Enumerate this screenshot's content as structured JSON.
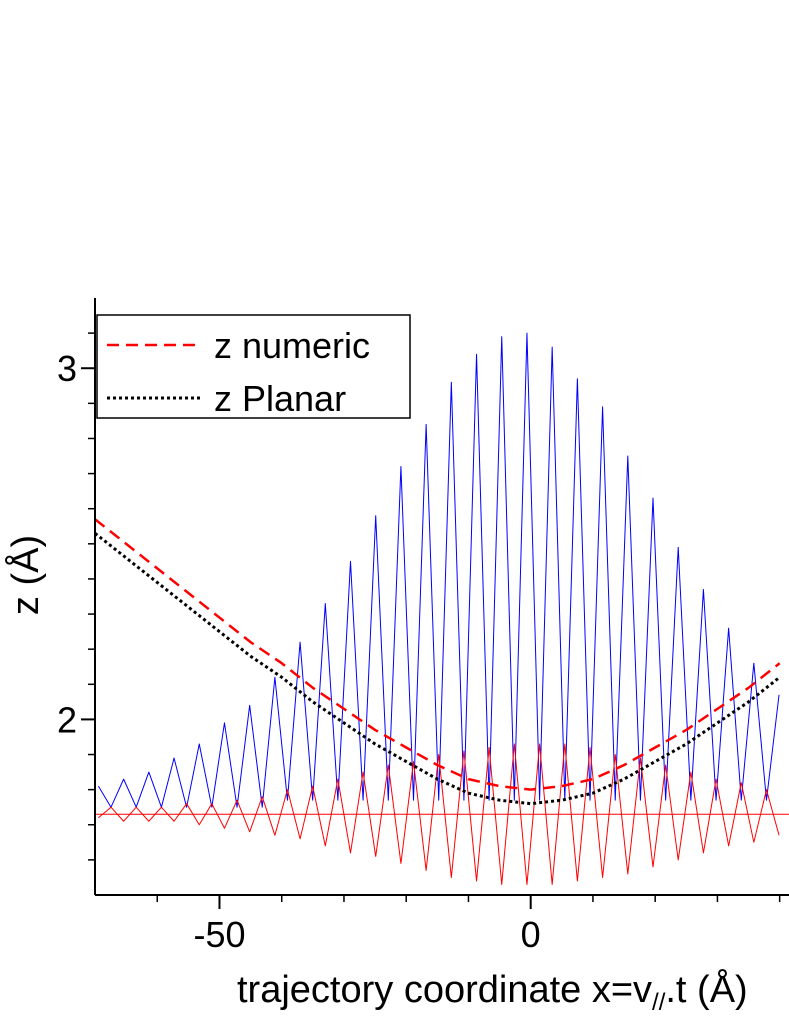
{
  "chart_data": {
    "type": "line",
    "x_label": "trajectory coordinate x=v",
    "x_label_sub": "//",
    "x_label_end": ".t (Å)",
    "y_label": "z (Å)",
    "xlim": [
      -70,
      41.5
    ],
    "ylim": [
      1.5,
      3.2
    ],
    "xticks": [
      -50,
      0
    ],
    "xminorticks": [
      -60,
      -40,
      -30,
      -20,
      -10,
      10,
      20,
      30,
      40
    ],
    "yticks": [
      2,
      3
    ],
    "yminorticks": [
      1.6,
      1.7,
      1.8,
      1.9,
      2.1,
      2.2,
      2.3,
      2.4,
      2.5,
      2.6,
      2.7,
      2.8,
      2.9,
      3.1
    ],
    "legend": "top-left",
    "hlines": [
      {
        "value": 1.73,
        "color": "#ff0000"
      }
    ],
    "series": [
      {
        "color": "#0000ff",
        "style": "solid",
        "width": 1,
        "x": [
          -69.45,
          -67.43,
          -65.4,
          -63.38,
          -61.35,
          -59.33,
          -57.3,
          -55.28,
          -53.25,
          -51.23,
          -49.2,
          -47.18,
          -45.15,
          -43.13,
          -41.1,
          -39.08,
          -37.05,
          -35.03,
          -33,
          -30.98,
          -28.95,
          -26.93,
          -24.9,
          -22.88,
          -20.85,
          -18.83,
          -16.8,
          -14.78,
          -12.75,
          -10.73,
          -8.7,
          -6.68,
          -4.65,
          -2.63,
          -0.6,
          1.43,
          3.45,
          5.48,
          7.5,
          9.53,
          11.55,
          13.58,
          15.6,
          17.63,
          19.65,
          21.68,
          23.7,
          25.73,
          27.75,
          29.78,
          31.8,
          33.83,
          35.85,
          37.88,
          39.9
        ],
        "values": [
          1.81,
          1.75,
          1.83,
          1.75,
          1.85,
          1.75,
          1.89,
          1.75,
          1.93,
          1.75,
          1.99,
          1.75,
          2.04,
          1.75,
          2.12,
          1.77,
          2.22,
          1.77,
          2.33,
          1.77,
          2.45,
          1.77,
          2.58,
          1.77,
          2.72,
          1.77,
          2.84,
          1.77,
          2.96,
          1.77,
          3.04,
          1.77,
          3.09,
          1.77,
          3.1,
          1.77,
          3.06,
          1.77,
          2.97,
          1.77,
          2.89,
          1.77,
          2.75,
          1.77,
          2.63,
          1.77,
          2.49,
          1.77,
          2.37,
          1.77,
          2.26,
          1.77,
          2.16,
          1.77,
          2.07
        ]
      },
      {
        "color": "#ff0000",
        "style": "solid",
        "width": 1,
        "x": [
          -69.45,
          -67.43,
          -65.4,
          -63.38,
          -61.35,
          -59.33,
          -57.3,
          -55.28,
          -53.25,
          -51.23,
          -49.2,
          -47.18,
          -45.15,
          -43.13,
          -41.1,
          -39.08,
          -37.05,
          -35.03,
          -33,
          -30.98,
          -28.95,
          -26.93,
          -24.9,
          -22.88,
          -20.85,
          -18.83,
          -16.8,
          -14.78,
          -12.75,
          -10.73,
          -8.7,
          -6.68,
          -4.65,
          -2.63,
          -0.6,
          1.43,
          3.45,
          5.48,
          7.5,
          9.53,
          11.55,
          13.58,
          15.6,
          17.63,
          19.65,
          21.68,
          23.7,
          25.73,
          27.75,
          29.78,
          31.8,
          33.83,
          35.85,
          37.88,
          39.9
        ],
        "values": [
          1.72,
          1.75,
          1.71,
          1.75,
          1.71,
          1.75,
          1.71,
          1.76,
          1.7,
          1.76,
          1.69,
          1.77,
          1.68,
          1.78,
          1.67,
          1.8,
          1.66,
          1.81,
          1.64,
          1.83,
          1.62,
          1.85,
          1.61,
          1.87,
          1.59,
          1.88,
          1.57,
          1.9,
          1.55,
          1.91,
          1.54,
          1.92,
          1.53,
          1.93,
          1.53,
          1.93,
          1.53,
          1.93,
          1.54,
          1.92,
          1.55,
          1.9,
          1.56,
          1.89,
          1.58,
          1.87,
          1.6,
          1.85,
          1.62,
          1.83,
          1.64,
          1.82,
          1.65,
          1.8,
          1.67
        ]
      },
      {
        "name": "z numeric",
        "color": "#ff0000",
        "style": "dashed",
        "width": 2.5,
        "x": [
          -70,
          -65,
          -60,
          -55,
          -50,
          -45,
          -40,
          -35,
          -30,
          -25,
          -20,
          -15,
          -10,
          -5,
          0,
          5,
          10,
          15,
          20,
          25,
          30,
          35,
          40
        ],
        "values": [
          2.57,
          2.5,
          2.43,
          2.36,
          2.29,
          2.22,
          2.16,
          2.09,
          2.03,
          1.97,
          1.92,
          1.87,
          1.83,
          1.81,
          1.8,
          1.81,
          1.83,
          1.87,
          1.92,
          1.97,
          2.03,
          2.09,
          2.16
        ]
      },
      {
        "name": "z Planar",
        "color": "#000000",
        "style": "dotted",
        "width": 3,
        "x": [
          -70,
          -65,
          -60,
          -55,
          -50,
          -45,
          -40,
          -35,
          -30,
          -25,
          -20,
          -15,
          -10,
          -5,
          0,
          5,
          10,
          15,
          20,
          25,
          30,
          35,
          40
        ],
        "values": [
          2.53,
          2.46,
          2.39,
          2.32,
          2.25,
          2.18,
          2.12,
          2.05,
          1.99,
          1.93,
          1.88,
          1.83,
          1.79,
          1.77,
          1.76,
          1.77,
          1.79,
          1.83,
          1.88,
          1.93,
          1.99,
          2.05,
          2.12
        ]
      }
    ]
  }
}
